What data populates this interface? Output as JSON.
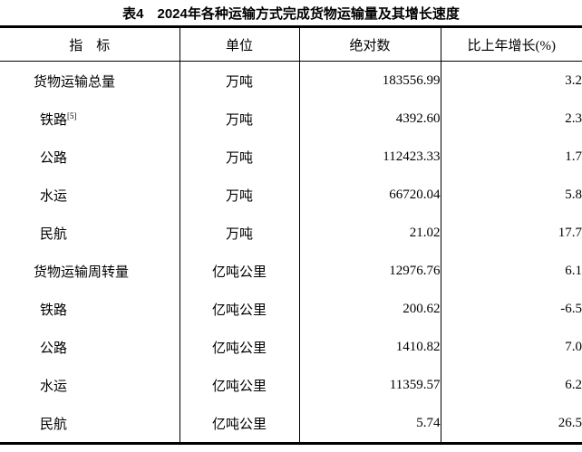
{
  "title": "表4　2024年各种运输方式完成货物运输量及其增长速度",
  "table": {
    "headers": {
      "indicator": "指　标",
      "unit": "单位",
      "absolute": "绝对数",
      "growth": "比上年增长(%)"
    },
    "rows": [
      {
        "indicator": "货物运输总量",
        "sup": "",
        "unit": "万吨",
        "absolute": "183556.99",
        "growth": "3.2",
        "level": "parent"
      },
      {
        "indicator": "铁路",
        "sup": "[5]",
        "unit": "万吨",
        "absolute": "4392.60",
        "growth": "2.3",
        "level": "sub"
      },
      {
        "indicator": "公路",
        "sup": "",
        "unit": "万吨",
        "absolute": "112423.33",
        "growth": "1.7",
        "level": "sub"
      },
      {
        "indicator": "水运",
        "sup": "",
        "unit": "万吨",
        "absolute": "66720.04",
        "growth": "5.8",
        "level": "sub"
      },
      {
        "indicator": "民航",
        "sup": "",
        "unit": "万吨",
        "absolute": "21.02",
        "growth": "17.7",
        "level": "sub"
      },
      {
        "indicator": "货物运输周转量",
        "sup": "",
        "unit": "亿吨公里",
        "absolute": "12976.76",
        "growth": "6.1",
        "level": "parent"
      },
      {
        "indicator": "铁路",
        "sup": "",
        "unit": "亿吨公里",
        "absolute": "200.62",
        "growth": "-6.5",
        "level": "sub"
      },
      {
        "indicator": "公路",
        "sup": "",
        "unit": "亿吨公里",
        "absolute": "1410.82",
        "growth": "7.0",
        "level": "sub"
      },
      {
        "indicator": "水运",
        "sup": "",
        "unit": "亿吨公里",
        "absolute": "11359.57",
        "growth": "6.2",
        "level": "sub"
      },
      {
        "indicator": "民航",
        "sup": "",
        "unit": "亿吨公里",
        "absolute": "5.74",
        "growth": "26.5",
        "level": "sub"
      }
    ]
  },
  "colors": {
    "text": "#000000",
    "background": "#ffffff",
    "border": "#000000"
  }
}
